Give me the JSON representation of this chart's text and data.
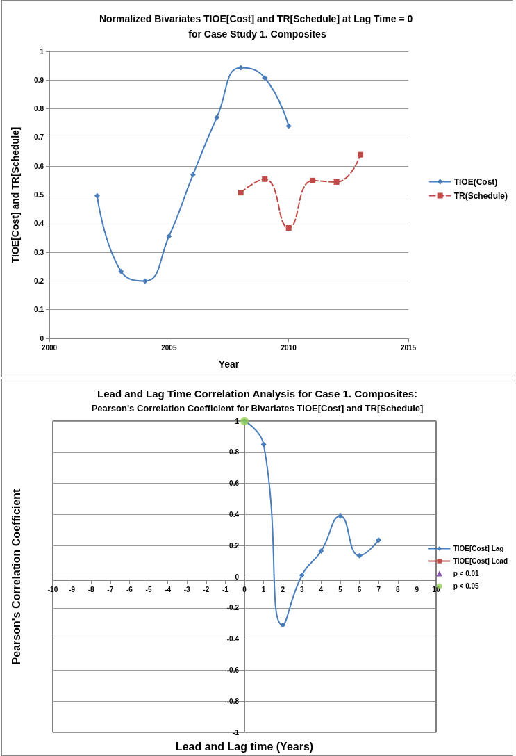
{
  "chart_data": [
    {
      "type": "line",
      "title": "Normalized Bivariates TIOE[Cost] and TR[Schedule] at Lag Time = 0 for Case Study 1. Composites",
      "xlabel": "Year",
      "ylabel": "TIOE[Cost] and TR[Schedule]",
      "series": [
        {
          "name": "TIOE(Cost)",
          "color": "#4a7ebb",
          "marker": "diamond",
          "line_style": "solid",
          "x": [
            2002,
            2003,
            2004,
            2005,
            2006,
            2007,
            2008,
            2009,
            2010
          ],
          "values": [
            0.497,
            0.233,
            0.2,
            0.356,
            0.57,
            0.77,
            0.943,
            0.908,
            0.74
          ]
        },
        {
          "name": "TR(Schedule)",
          "color": "#be4b48",
          "marker": "square",
          "line_style": "dashed",
          "x": [
            2008,
            2009,
            2010,
            2011,
            2012,
            2013
          ],
          "values": [
            0.508,
            0.555,
            0.385,
            0.55,
            0.545,
            0.64
          ]
        }
      ],
      "xlim": [
        2000,
        2015
      ],
      "xticks": [
        2000,
        2005,
        2010,
        2015
      ],
      "ylim": [
        0,
        1
      ],
      "yticks": [
        0,
        0.1,
        0.2,
        0.3,
        0.4,
        0.5,
        0.6,
        0.7,
        0.8,
        0.9,
        1
      ],
      "grid": "y",
      "legend": "right"
    },
    {
      "type": "line",
      "title": "Lead and Lag Time Correlation Analysis for Case 1. Composites:",
      "subtitle": "Pearson's Correlation Coefficient for Bivariates TIOE[Cost] and TR[Schedule]",
      "xlabel": "Lead and Lag time (Years)",
      "ylabel": "Pearson's Correlation Coefficient",
      "series": [
        {
          "name": "TIOE[Cost] Lag",
          "color": "#4a7ebb",
          "marker": "diamond",
          "line_style": "solid",
          "x": [
            0,
            1,
            2,
            3,
            4,
            5,
            6,
            7
          ],
          "values": [
            1,
            0.85,
            -0.31,
            0.01,
            0.165,
            0.39,
            0.135,
            0.235
          ]
        },
        {
          "name": "TIOE[Cost] Lead",
          "color": "#be4b48",
          "marker": "square",
          "line_style": "solid"
        },
        {
          "name": "p < 0.01",
          "type": "scatter",
          "color": "#7030a0",
          "marker": "triangle"
        },
        {
          "name": "p < 0.05",
          "type": "scatter",
          "color": "#92d050",
          "marker": "circle",
          "x": [
            0
          ],
          "values": [
            1
          ]
        }
      ],
      "xlim": [
        -10,
        10
      ],
      "xticks": [
        -10,
        -9,
        -8,
        -7,
        -6,
        -5,
        -4,
        -3,
        -2,
        -1,
        0,
        1,
        2,
        3,
        4,
        5,
        6,
        7,
        8,
        9,
        10
      ],
      "ylim": [
        -1,
        1
      ],
      "yticks": [
        -1,
        -0.8,
        -0.6,
        -0.4,
        -0.2,
        0,
        0.2,
        0.4,
        0.6,
        0.8,
        1
      ],
      "grid": "y",
      "legend": "right"
    }
  ]
}
